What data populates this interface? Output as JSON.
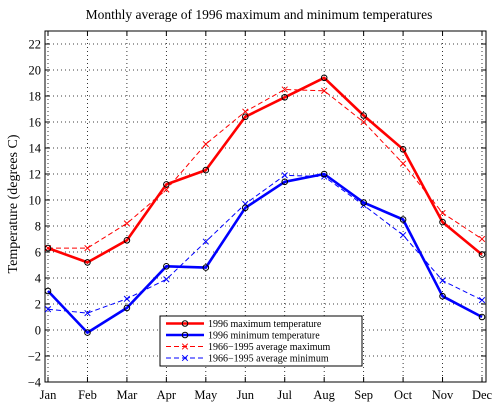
{
  "chart_data": {
    "type": "line",
    "title": "Monthly average of 1996 maximum and minimum temperatures",
    "xlabel": "",
    "ylabel": "Temperature (degrees C)",
    "categories": [
      "Jan",
      "Feb",
      "Mar",
      "Apr",
      "May",
      "Jun",
      "Jul",
      "Aug",
      "Sep",
      "Oct",
      "Nov",
      "Dec"
    ],
    "ylim": [
      -4,
      23
    ],
    "yticks": [
      -4,
      -2,
      0,
      2,
      4,
      6,
      8,
      10,
      12,
      14,
      16,
      18,
      20,
      22
    ],
    "grid": true,
    "legend_position": "bottom-center",
    "series": [
      {
        "name": "1996 maximum temperature",
        "color": "#ff0000",
        "style": "solid",
        "marker": "circle",
        "values": [
          6.3,
          5.2,
          6.9,
          11.2,
          12.3,
          16.4,
          17.9,
          19.4,
          16.5,
          13.9,
          8.3,
          5.8
        ]
      },
      {
        "name": "1996 minimum temperature",
        "color": "#0000ff",
        "style": "solid",
        "marker": "circle",
        "values": [
          3.0,
          -0.2,
          1.7,
          4.9,
          4.8,
          9.4,
          11.4,
          12.0,
          9.8,
          8.5,
          2.6,
          1.0
        ]
      },
      {
        "name": "1966−1995 average maximum",
        "color": "#ff0000",
        "style": "dashed",
        "marker": "x",
        "values": [
          6.3,
          6.3,
          8.2,
          10.8,
          14.3,
          16.8,
          18.5,
          18.4,
          16.0,
          12.8,
          9.0,
          7.0
        ]
      },
      {
        "name": "1966−1995 average minimum",
        "color": "#0000ff",
        "style": "dashed",
        "marker": "x",
        "values": [
          1.6,
          1.3,
          2.4,
          3.9,
          6.8,
          9.7,
          11.9,
          11.8,
          9.6,
          7.3,
          3.8,
          2.3
        ]
      }
    ]
  }
}
